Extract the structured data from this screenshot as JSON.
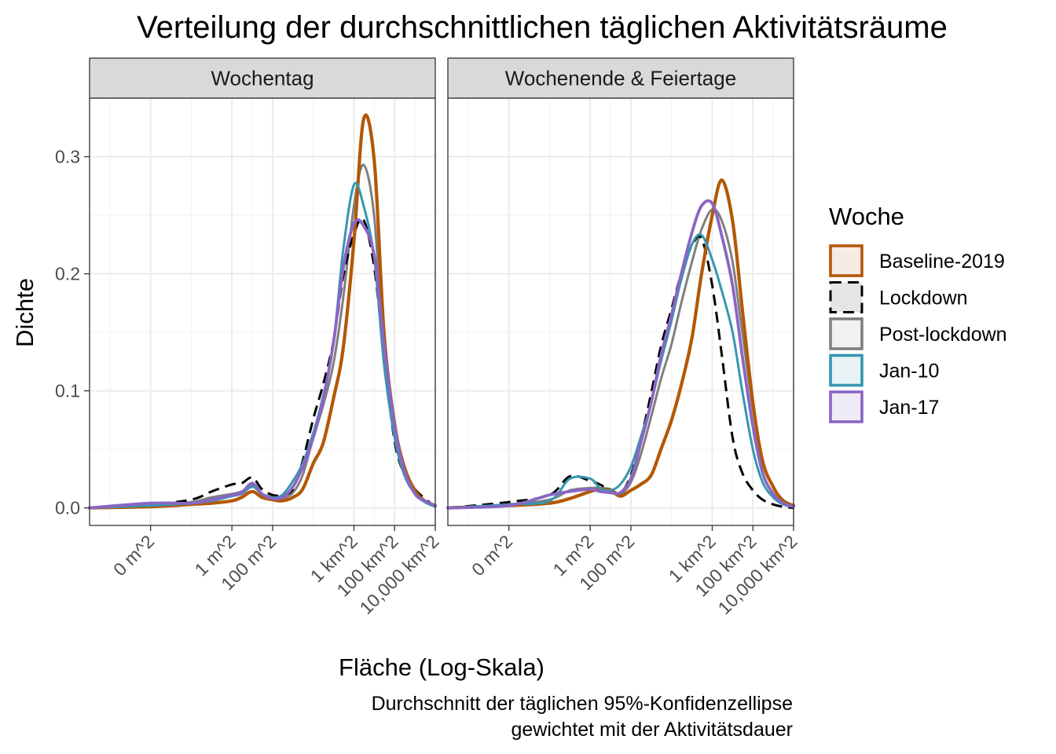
{
  "title": "Verteilung der durchschnittlichen täglichen Aktivitätsräume",
  "caption": [
    "Durchschnitt der täglichen 95%-Konfidenzellipse",
    "gewichtet mit der Aktivitätsdauer"
  ],
  "legend": {
    "title": "Woche",
    "entries": [
      "Baseline-2019",
      "Lockdown",
      "Post-lockdown",
      "Jan-10",
      "Jan-17"
    ]
  },
  "colors": {
    "Baseline-2019": "#b35806",
    "Lockdown": "#000000",
    "Post-lockdown": "#7f7f7f",
    "Jan-10": "#3696b1",
    "Jan-17": "#8966c4"
  },
  "chart_data": {
    "type": "line",
    "xlabel": "Fläche (Log-Skala)",
    "ylabel": "Dichte",
    "x_scale": "log10",
    "x_unit": "m^2",
    "xlim": [
      1e-07,
      10000000000
    ],
    "ylim": [
      -0.015,
      0.35
    ],
    "x_ticks": [
      {
        "value": 0.0001,
        "label": "0 m^2"
      },
      {
        "value": 1,
        "label": "1 m^2"
      },
      {
        "value": 100,
        "label": "100 m^2"
      },
      {
        "value": 1000000,
        "label": "1 km^2"
      },
      {
        "value": 100000000,
        "label": "100 km^2"
      },
      {
        "value": 10000000000,
        "label": "10,000 km^2"
      }
    ],
    "y_ticks": [
      0.0,
      0.1,
      0.2,
      0.3
    ],
    "y_tick_labels": [
      "0.0",
      "0.1",
      "0.2",
      "0.3"
    ],
    "grid": true,
    "legend_position": "right",
    "facets": [
      {
        "label": "Wochentag",
        "series": [
          {
            "name": "Baseline-2019",
            "line_style": "solid",
            "x": [
              1e-07,
              0.0001,
              0.01,
              0.1,
              1,
              3,
              10,
              30,
              100,
              300,
              1000,
              3000,
              10000,
              30000,
              100000,
              300000,
              1000000,
              3000000,
              10000000,
              30000000,
              100000000,
              300000000,
              1000000000,
              3000000000,
              10000000000
            ],
            "y": [
              0.0,
              0.001,
              0.003,
              0.004,
              0.006,
              0.009,
              0.014,
              0.009,
              0.007,
              0.006,
              0.009,
              0.016,
              0.038,
              0.055,
              0.094,
              0.137,
              0.228,
              0.332,
              0.296,
              0.15,
              0.072,
              0.035,
              0.015,
              0.006,
              0.002
            ]
          },
          {
            "name": "Lockdown",
            "line_style": "dashed",
            "x": [
              1e-07,
              0.0001,
              0.01,
              0.1,
              1,
              3,
              10,
              30,
              100,
              300,
              1000,
              3000,
              10000,
              30000,
              100000,
              300000,
              1000000,
              3000000,
              10000000,
              30000000,
              100000000,
              300000000,
              1000000000,
              3000000000,
              10000000000
            ],
            "y": [
              0.0,
              0.003,
              0.007,
              0.014,
              0.02,
              0.021,
              0.026,
              0.016,
              0.011,
              0.011,
              0.016,
              0.04,
              0.076,
              0.105,
              0.143,
              0.198,
              0.234,
              0.246,
              0.205,
              0.13,
              0.057,
              0.029,
              0.016,
              0.008,
              0.001
            ]
          },
          {
            "name": "Post-lockdown",
            "line_style": "solid",
            "x": [
              1e-07,
              0.0001,
              0.01,
              0.1,
              1,
              3,
              10,
              30,
              100,
              300,
              1000,
              3000,
              10000,
              30000,
              100000,
              300000,
              1000000,
              3000000,
              10000000,
              30000000,
              100000000,
              300000000,
              1000000000,
              3000000000,
              10000000000
            ],
            "y": [
              0.0,
              0.002,
              0.005,
              0.009,
              0.012,
              0.014,
              0.019,
              0.012,
              0.009,
              0.008,
              0.013,
              0.028,
              0.06,
              0.087,
              0.124,
              0.18,
              0.258,
              0.293,
              0.248,
              0.13,
              0.062,
              0.029,
              0.013,
              0.006,
              0.001
            ]
          },
          {
            "name": "Jan-10",
            "line_style": "solid",
            "x": [
              1e-07,
              0.0001,
              0.01,
              0.1,
              1,
              3,
              10,
              30,
              100,
              300,
              1000,
              3000,
              10000,
              30000,
              100000,
              300000,
              1000000,
              3000000,
              10000000,
              30000000,
              100000000,
              300000000,
              1000000000,
              3000000000,
              10000000000
            ],
            "y": [
              0.0,
              0.002,
              0.004,
              0.006,
              0.01,
              0.012,
              0.018,
              0.012,
              0.009,
              0.011,
              0.023,
              0.038,
              0.064,
              0.095,
              0.142,
              0.221,
              0.276,
              0.258,
              0.213,
              0.123,
              0.06,
              0.028,
              0.012,
              0.005,
              0.001
            ]
          },
          {
            "name": "Jan-17",
            "line_style": "solid",
            "x": [
              1e-07,
              0.0001,
              0.01,
              0.1,
              1,
              3,
              10,
              30,
              100,
              300,
              1000,
              3000,
              10000,
              30000,
              100000,
              300000,
              1000000,
              3000000,
              10000000,
              30000000,
              100000000,
              300000000,
              1000000000,
              3000000000,
              10000000000
            ],
            "y": [
              0.0,
              0.004,
              0.004,
              0.007,
              0.011,
              0.013,
              0.021,
              0.012,
              0.008,
              0.009,
              0.018,
              0.035,
              0.06,
              0.092,
              0.142,
              0.205,
              0.243,
              0.241,
              0.215,
              0.14,
              0.07,
              0.032,
              0.012,
              0.006,
              0.002
            ]
          }
        ]
      },
      {
        "label": "Wochenende & Feiertage",
        "series": [
          {
            "name": "Baseline-2019",
            "line_style": "solid",
            "x": [
              1e-07,
              0.0001,
              0.01,
              0.1,
              1,
              3,
              10,
              30,
              100,
              300,
              1000,
              3000,
              10000,
              30000,
              100000,
              300000,
              1000000,
              3000000,
              10000000,
              30000000,
              100000000,
              300000000,
              1000000000,
              3000000000,
              10000000000
            ],
            "y": [
              0.0,
              0.002,
              0.004,
              0.008,
              0.014,
              0.016,
              0.015,
              0.01,
              0.015,
              0.02,
              0.028,
              0.05,
              0.075,
              0.105,
              0.145,
              0.2,
              0.25,
              0.28,
              0.245,
              0.17,
              0.09,
              0.04,
              0.018,
              0.006,
              0.002
            ]
          },
          {
            "name": "Lockdown",
            "line_style": "dashed",
            "x": [
              1e-07,
              0.0001,
              0.01,
              0.1,
              1,
              3,
              10,
              30,
              100,
              300,
              1000,
              3000,
              10000,
              30000,
              100000,
              300000,
              1000000,
              3000000,
              10000000,
              30000000,
              100000000,
              300000000,
              1000000000,
              3000000000,
              10000000000
            ],
            "y": [
              0.0,
              0.005,
              0.011,
              0.027,
              0.023,
              0.02,
              0.015,
              0.012,
              0.028,
              0.058,
              0.098,
              0.138,
              0.17,
              0.2,
              0.224,
              0.23,
              0.19,
              0.13,
              0.06,
              0.03,
              0.015,
              0.007,
              0.003,
              0.001,
              0.0
            ]
          },
          {
            "name": "Post-lockdown",
            "line_style": "solid",
            "x": [
              1e-07,
              0.0001,
              0.01,
              0.1,
              1,
              3,
              10,
              30,
              100,
              300,
              1000,
              3000,
              10000,
              30000,
              100000,
              300000,
              1000000,
              3000000,
              10000000,
              30000000,
              100000000,
              300000000,
              1000000000,
              3000000000,
              10000000000
            ],
            "y": [
              0.0,
              0.003,
              0.007,
              0.015,
              0.017,
              0.017,
              0.016,
              0.012,
              0.022,
              0.045,
              0.078,
              0.11,
              0.14,
              0.175,
              0.21,
              0.238,
              0.255,
              0.245,
              0.21,
              0.15,
              0.085,
              0.04,
              0.018,
              0.007,
              0.002
            ]
          },
          {
            "name": "Jan-10",
            "line_style": "solid",
            "x": [
              1e-07,
              0.0001,
              0.01,
              0.1,
              1,
              3,
              10,
              30,
              100,
              300,
              1000,
              3000,
              10000,
              30000,
              100000,
              300000,
              1000000,
              3000000,
              10000000,
              30000000,
              100000000,
              300000000,
              1000000000,
              3000000000,
              10000000000
            ],
            "y": [
              0.0,
              0.003,
              0.006,
              0.025,
              0.025,
              0.017,
              0.015,
              0.02,
              0.035,
              0.06,
              0.09,
              0.125,
              0.16,
              0.195,
              0.225,
              0.233,
              0.212,
              0.185,
              0.15,
              0.1,
              0.05,
              0.022,
              0.009,
              0.003,
              0.001
            ]
          },
          {
            "name": "Jan-17",
            "line_style": "solid",
            "x": [
              1e-07,
              0.0001,
              0.01,
              0.1,
              1,
              3,
              10,
              30,
              100,
              300,
              1000,
              3000,
              10000,
              30000,
              100000,
              300000,
              1000000,
              3000000,
              10000000,
              30000000,
              100000000,
              300000000,
              1000000000,
              3000000000,
              10000000000
            ],
            "y": [
              0.0,
              0.002,
              0.011,
              0.014,
              0.016,
              0.014,
              0.013,
              0.013,
              0.025,
              0.055,
              0.09,
              0.13,
              0.165,
              0.2,
              0.235,
              0.258,
              0.26,
              0.232,
              0.19,
              0.13,
              0.07,
              0.03,
              0.012,
              0.004,
              0.001
            ]
          }
        ]
      }
    ]
  }
}
